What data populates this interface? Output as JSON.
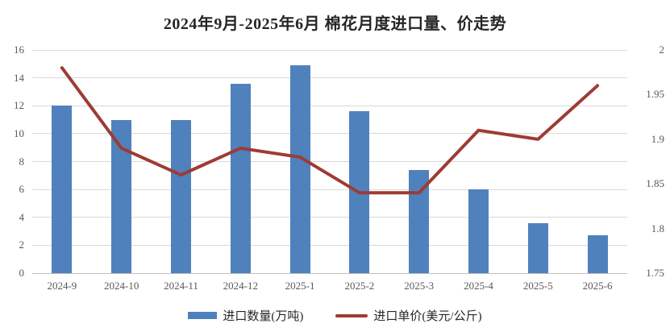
{
  "title": "2024年9月-2025年6月 棉花月度进口量、价走势",
  "chart_data": {
    "type": "combo",
    "title": "2024年9月-2025年6月 棉花月度进口量、价走势",
    "categories": [
      "2024-9",
      "2024-10",
      "2024-11",
      "2024-12",
      "2025-1",
      "2025-2",
      "2025-3",
      "2025-4",
      "2025-5",
      "2025-6"
    ],
    "series": [
      {
        "name": "进口数量(万吨)",
        "type": "bar",
        "axis": "left",
        "color": "#4F81BD",
        "values": [
          12.0,
          11.0,
          11.0,
          13.6,
          14.9,
          11.6,
          7.4,
          6.0,
          3.6,
          2.7
        ]
      },
      {
        "name": "进口单价(美元/公斤)",
        "type": "line",
        "axis": "right",
        "color": "#9E3B33",
        "values": [
          1.98,
          1.89,
          1.86,
          1.89,
          1.88,
          1.84,
          1.84,
          1.91,
          1.9,
          1.96
        ]
      }
    ],
    "left_axis": {
      "min": 0,
      "max": 16,
      "step": 2,
      "ticks": [
        "0",
        "2",
        "4",
        "6",
        "8",
        "10",
        "12",
        "14",
        "16"
      ]
    },
    "right_axis": {
      "min": 1.75,
      "max": 2,
      "step": 0.05,
      "ticks": [
        "1.75",
        "1.8",
        "1.85",
        "1.9",
        "1.95",
        "2"
      ]
    },
    "grid": true,
    "legend_position": "bottom",
    "colors": {
      "grid": "#D9D9D9",
      "axis_text": "#595959",
      "title_text": "#262626",
      "background": "#FFFFFF"
    }
  }
}
